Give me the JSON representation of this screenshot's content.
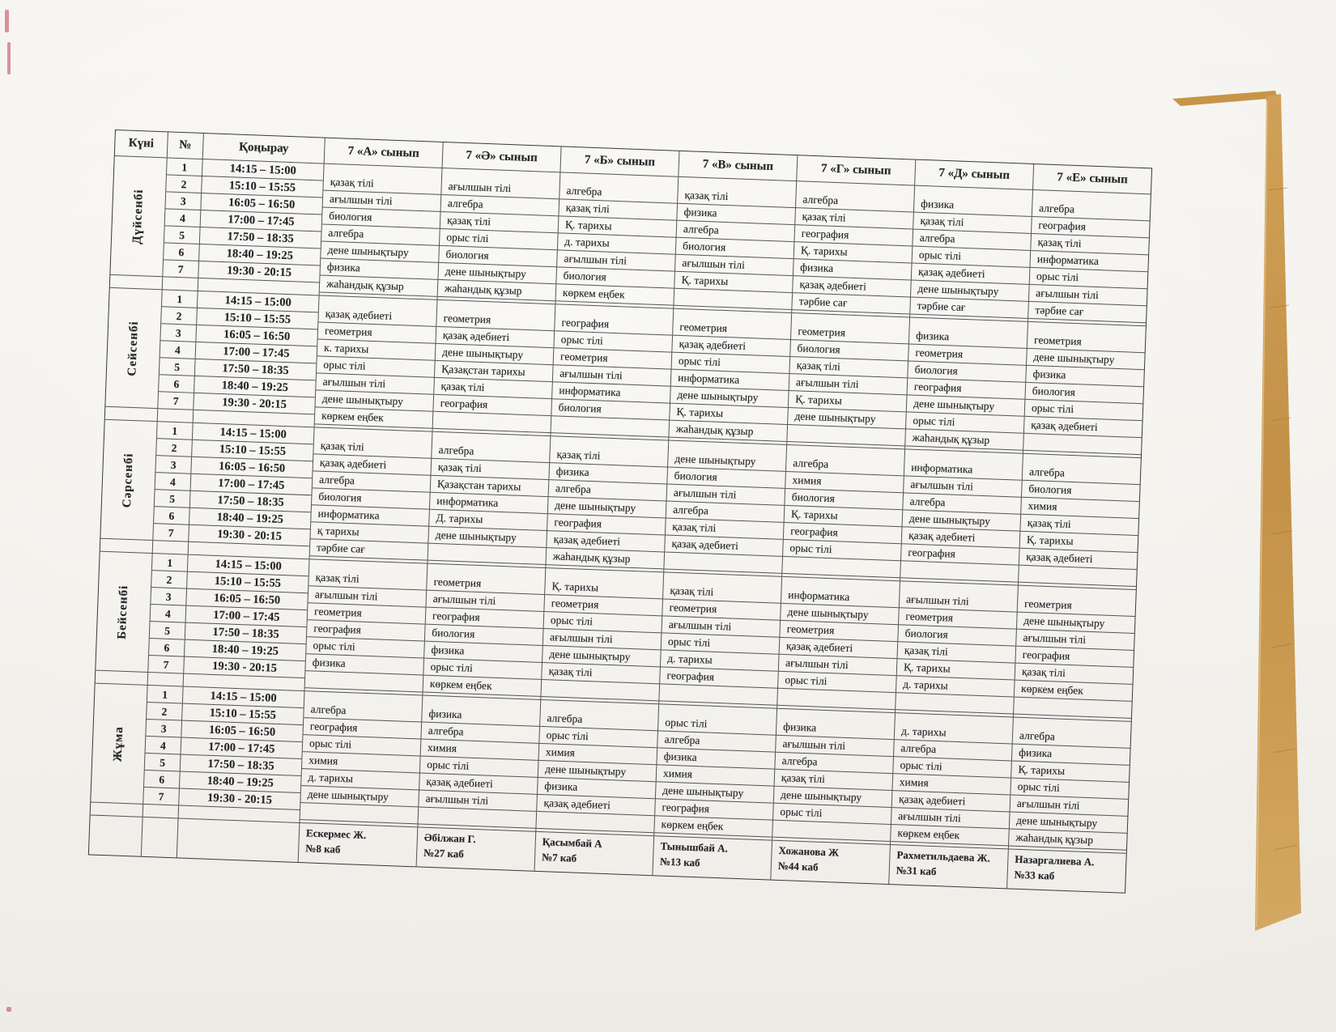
{
  "timetable": {
    "header": {
      "day_col": "Күні",
      "num_col": "№",
      "bell_col": "Қоңырау",
      "classes": [
        "7 «А» сынып",
        "7 «Ә» сынып",
        "7 «Б» сынып",
        "7 «В» сынып",
        "7 «Г» сынып",
        "7 «Д» сынып",
        "7 «Е» сынып"
      ]
    },
    "lesson_numbers": [
      "1",
      "2",
      "3",
      "4",
      "5",
      "6",
      "7"
    ],
    "times": [
      "14:15 – 15:00",
      "15:10 – 15:55",
      "16:05 – 16:50",
      "17:00 – 17:45",
      "17:50 – 18:35",
      "18:40 – 19:25",
      "19:30 - 20:15"
    ],
    "days": [
      {
        "name": "Дүйсенбі",
        "by_class": [
          [
            "қазақ тілі",
            "ағылшын тілі",
            "биология",
            "алгебра",
            "дене шынықтыру",
            "физика",
            "жаһандық құзыр"
          ],
          [
            "ағылшын тілі",
            "алгебра",
            "қазақ тілі",
            "орыс тілі",
            "биология",
            "дене шынықтыру",
            "жаһандық құзыр"
          ],
          [
            "алгебра",
            "қазақ тілі",
            "Қ. тарихы",
            "д. тарихы",
            "ағылшын тілі",
            "биология",
            "көркем еңбек"
          ],
          [
            "қазақ тілі",
            "физика",
            "алгебра",
            "биология",
            "ағылшын тілі",
            "Қ. тарихы",
            ""
          ],
          [
            "алгебра",
            "қазақ тілі",
            "география",
            "Қ. тарихы",
            "физика",
            "қазақ әдебиеті",
            "тәрбие сағ"
          ],
          [
            "физика",
            "қазақ тілі",
            "алгебра",
            "орыс тілі",
            "қазақ әдебиеті",
            "дене шынықтыру",
            "тәрбие сағ"
          ],
          [
            "алгебра",
            "география",
            "қазақ тілі",
            "информатика",
            "орыс тілі",
            "ағылшын тілі",
            "тәрбие сағ"
          ]
        ]
      },
      {
        "name": "Сейсенбі",
        "by_class": [
          [
            "қазақ әдебиеті",
            "геометрия",
            "к. тарихы",
            "орыс тілі",
            "ағылшын тілі",
            "дене шынықтыру",
            "көркем еңбек"
          ],
          [
            "геометрия",
            "қазақ әдебиеті",
            "дене шынықтыру",
            "Қазақстан тарихы",
            "қазақ тілі",
            "география",
            ""
          ],
          [
            "география",
            "орыс тілі",
            "геометрия",
            "ағылшын тілі",
            "информатика",
            "биология",
            ""
          ],
          [
            "геометрия",
            "қазақ әдебиеті",
            "орыс тілі",
            "информатика",
            "дене шынықтыру",
            "Қ. тарихы",
            "жаһандық құзыр"
          ],
          [
            "геометрия",
            "биология",
            "қазақ тілі",
            "ағылшын тілі",
            "Қ. тарихы",
            "дене шынықтыру",
            ""
          ],
          [
            "физика",
            "геометрия",
            "биология",
            "география",
            "дене шынықтыру",
            "орыс тілі",
            "жаһандық құзыр"
          ],
          [
            "геометрия",
            "дене шынықтыру",
            "физика",
            "биология",
            "орыс тілі",
            "қазақ әдебиеті",
            ""
          ]
        ]
      },
      {
        "name": "Сәрсенбі",
        "by_class": [
          [
            "қазақ тілі",
            "қазақ әдебиеті",
            "алгебра",
            "биология",
            "информатика",
            "қ тарихы",
            "тәрбие сағ"
          ],
          [
            "алгебра",
            "қазақ тілі",
            "Қазақстан тарихы",
            "информатика",
            "Д. тарихы",
            "дене шынықтыру",
            ""
          ],
          [
            "қазақ тілі",
            "физика",
            "алгебра",
            "дене шынықтыру",
            "география",
            "қазақ әдебиеті",
            "жаһандық құзыр"
          ],
          [
            "дене шынықтыру",
            "биология",
            "ағылшын тілі",
            "алгебра",
            "қазақ тілі",
            "қазақ әдебиеті",
            ""
          ],
          [
            "алгебра",
            "химия",
            "биология",
            "Қ. тарихы",
            "география",
            "орыс тілі",
            ""
          ],
          [
            "информатика",
            "ағылшын тілі",
            "алгебра",
            "дене шынықтыру",
            "қазақ әдебиеті",
            "география",
            ""
          ],
          [
            "алгебра",
            "биология",
            "химия",
            "қазақ тілі",
            "Қ. тарихы",
            "қазақ әдебиеті",
            ""
          ]
        ]
      },
      {
        "name": "Бейсенбі",
        "by_class": [
          [
            "қазақ тілі",
            "ағылшын тілі",
            "геометрия",
            "география",
            "орыс тілі",
            "физика",
            ""
          ],
          [
            "геометрия",
            "ағылшын тілі",
            "география",
            "биология",
            "физика",
            "орыс тілі",
            "көркем еңбек"
          ],
          [
            "Қ. тарихы",
            "геометрия",
            "орыс тілі",
            "ағылшын тілі",
            "дене шынықтыру",
            "қазақ тілі",
            ""
          ],
          [
            "қазақ тілі",
            "геометрия",
            "ағылшын тілі",
            "орыс тілі",
            "д. тарихы",
            "география",
            ""
          ],
          [
            "информатика",
            "дене шынықтыру",
            "геометрия",
            "қазақ әдебиеті",
            "ағылшын тілі",
            "орыс тілі",
            ""
          ],
          [
            "ағылшын тілі",
            "геометрия",
            "биология",
            "қазақ тілі",
            "Қ. тарихы",
            "д. тарихы",
            ""
          ],
          [
            "геометрия",
            "дене шынықтыру",
            "ағылшын тілі",
            "география",
            "қазақ тілі",
            "көркем еңбек",
            ""
          ]
        ]
      },
      {
        "name": "Жұма",
        "by_class": [
          [
            "алгебра",
            "география",
            "орыс тілі",
            "химия",
            "д. тарихы",
            "дене шынықтыру",
            ""
          ],
          [
            "физика",
            "алгебра",
            "химия",
            "орыс тілі",
            "қазақ әдебиеті",
            "ағылшын тілі",
            ""
          ],
          [
            "алгебра",
            "орыс тілі",
            "химия",
            "дене шынықтыру",
            "физика",
            "қазақ әдебиеті",
            ""
          ],
          [
            "орыс тілі",
            "алгебра",
            "физика",
            "химия",
            "дене шынықтыру",
            "география",
            "көркем еңбек"
          ],
          [
            "физика",
            "ағылшын тілі",
            "алгебра",
            "қазақ тілі",
            "дене шынықтыру",
            "орыс тілі",
            ""
          ],
          [
            "д. тарихы",
            "алгебра",
            "орыс тілі",
            "химия",
            "қазақ әдебиеті",
            "ағылшын тілі",
            "көркем еңбек"
          ],
          [
            "алгебра",
            "физика",
            "Қ. тарихы",
            "орыс тілі",
            "ағылшын тілі",
            "дене шынықтыру",
            "жаһандық құзыр"
          ]
        ]
      }
    ],
    "teachers": [
      {
        "name": "Ескермес Ж.",
        "room": "№8 каб"
      },
      {
        "name": "Әбілжан Г.",
        "room": "№27 каб"
      },
      {
        "name": "Қасымбай А",
        "room": "№7 каб"
      },
      {
        "name": "Тынышбай А.",
        "room": "№13 каб"
      },
      {
        "name": "Хожанова Ж",
        "room": "№44 каб"
      },
      {
        "name": "Рахметильдаева Ж.",
        "room": "№31 каб"
      },
      {
        "name": "Назаргалиева А.",
        "room": "№33 каб"
      }
    ],
    "colors": {
      "paper": "#f8f6f2",
      "desk_wood": "#c79549",
      "table_line": "#37373d"
    }
  }
}
